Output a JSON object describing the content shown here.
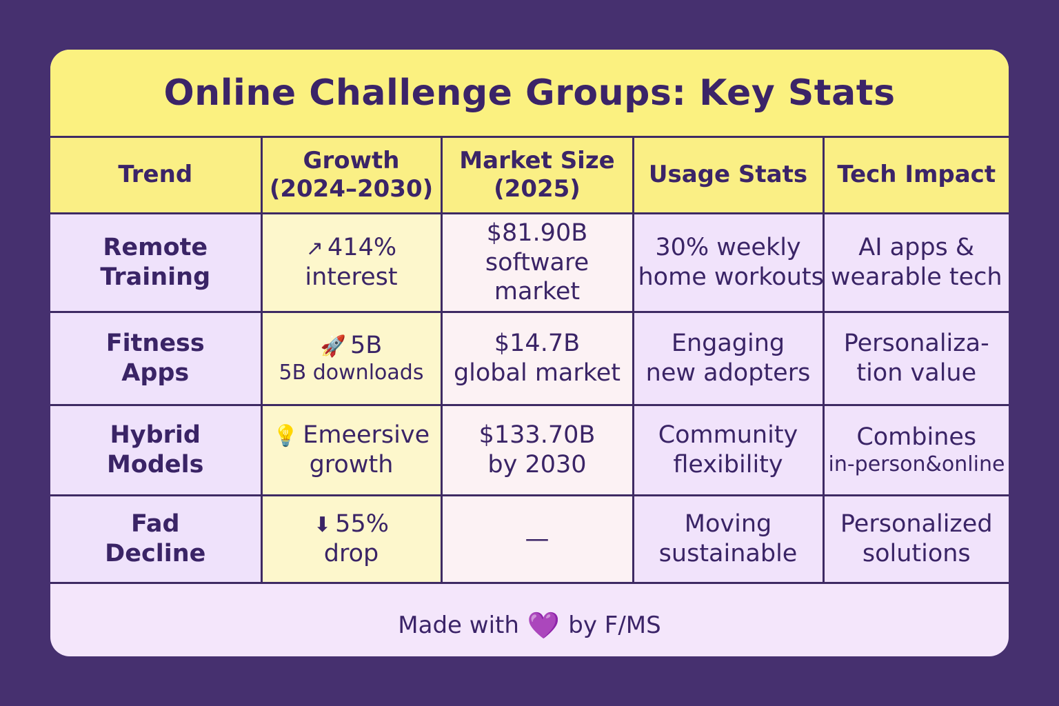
{
  "title": "Online Challenge Groups: Key Stats",
  "headers": {
    "trend": "Trend",
    "growth_1": "Growth",
    "growth_2": "(2024–2030)",
    "market_1": "Market Size",
    "market_2": "(2025)",
    "usage": "Usage Stats",
    "tech": "Tech Impact"
  },
  "rows": [
    {
      "trend": [
        "Remote",
        "Training"
      ],
      "growth_icon": "↗",
      "growth_icon_name": "arrow-up-right-icon",
      "growth": [
        "414%",
        "interest"
      ],
      "market": [
        "$81.90B",
        "software",
        "market"
      ],
      "usage": [
        "30% weekly",
        "home workouts"
      ],
      "tech": [
        "AI apps &",
        "wearable tech"
      ]
    },
    {
      "trend": [
        "Fitness",
        "Apps"
      ],
      "growth_icon": "🚀",
      "growth_icon_name": "rocket-icon",
      "growth": [
        "5B",
        "5B downloads"
      ],
      "market": [
        "$14.7B",
        "global market"
      ],
      "usage": [
        "Engaging",
        "new adopters"
      ],
      "tech": [
        "Personaliza-",
        "tion value"
      ]
    },
    {
      "trend": [
        "Hybrid",
        "Models"
      ],
      "growth_icon": "💡",
      "growth_icon_name": "lightbulb-icon",
      "growth": [
        "Emeersive",
        "growth"
      ],
      "market": [
        "$133.70B",
        "by 2030"
      ],
      "usage": [
        "Community",
        "flexibility"
      ],
      "tech": [
        "Combines",
        "in-person&online"
      ]
    },
    {
      "trend": [
        "Fad",
        "Decline"
      ],
      "growth_icon": "⬇",
      "growth_icon_name": "arrow-down-icon",
      "growth": [
        "55%",
        "drop"
      ],
      "market": [
        "—"
      ],
      "usage": [
        "Moving",
        "sustainable"
      ],
      "tech": [
        "Personalized",
        "solutions"
      ]
    }
  ],
  "footer": {
    "prefix": "Made with",
    "heart": "💜",
    "suffix": "by F/MS"
  },
  "colors": {
    "background": "#46306f",
    "title_bar": "#fbf180",
    "card": "#f4e6fb",
    "text": "#3a2466",
    "grid": "#3e2a63"
  }
}
